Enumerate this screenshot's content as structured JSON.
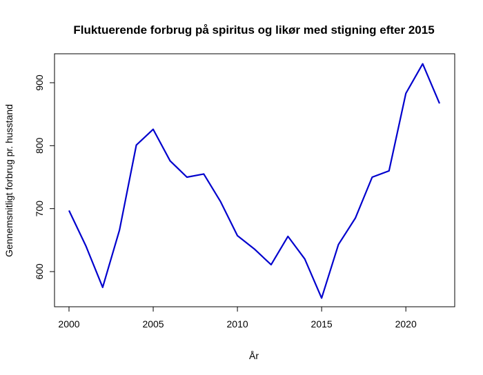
{
  "chart_data": {
    "type": "line",
    "title": "Fluktuerende forbrug på spiritus og likør med stigning efter 2015",
    "xlabel": "År",
    "ylabel": "Gennemsnitligt forbrug pr. husstand",
    "x": [
      2000,
      2001,
      2002,
      2003,
      2004,
      2005,
      2006,
      2007,
      2008,
      2009,
      2010,
      2011,
      2012,
      2013,
      2014,
      2015,
      2016,
      2017,
      2018,
      2019,
      2020,
      2021,
      2022
    ],
    "series": [
      {
        "values": [
          697,
          641,
          575,
          666,
          801,
          826,
          776,
          750,
          755,
          711,
          657,
          636,
          611,
          656,
          620,
          558,
          643,
          685,
          750,
          760,
          883,
          930,
          867
        ]
      }
    ],
    "xlim": [
      2000,
      2022
    ],
    "ylim": [
      558,
      930
    ],
    "x_ticks": [
      2000,
      2005,
      2010,
      2015,
      2020
    ],
    "y_ticks": [
      600,
      700,
      800,
      900
    ],
    "line_color": "#0000cd",
    "grid": false
  }
}
